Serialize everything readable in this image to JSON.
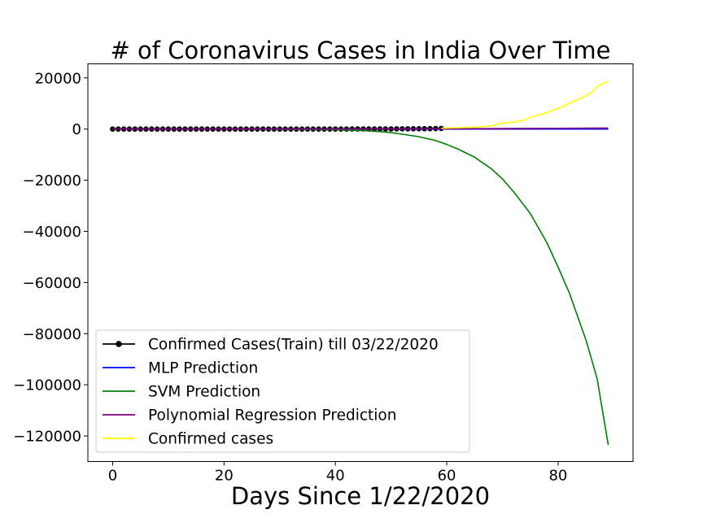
{
  "chart_data": {
    "type": "line",
    "title": "# of Coronavirus Cases in India Over Time",
    "xlabel": "Days Since 1/22/2020",
    "ylabel": "",
    "xlim": [
      -4.45,
      93.45
    ],
    "ylim": [
      -130000,
      25500
    ],
    "x_ticks": [
      0,
      20,
      40,
      60,
      80
    ],
    "x_tick_labels": [
      "0",
      "20",
      "40",
      "60",
      "80"
    ],
    "y_ticks": [
      20000,
      0,
      -20000,
      -40000,
      -60000,
      -80000,
      -100000,
      -120000
    ],
    "y_tick_labels": [
      "20000",
      "0",
      "−20000",
      "−40000",
      "−60000",
      "−80000",
      "−100000",
      "−120000"
    ],
    "grid": false,
    "legend_position": "lower-left",
    "series": [
      {
        "name": "Confirmed Cases(Train) till 03/22/2020",
        "color": "#000000",
        "marker": "circle",
        "x": [
          0,
          1,
          2,
          3,
          4,
          5,
          6,
          7,
          8,
          9,
          10,
          11,
          12,
          13,
          14,
          15,
          16,
          17,
          18,
          19,
          20,
          21,
          22,
          23,
          24,
          25,
          26,
          27,
          28,
          29,
          30,
          31,
          32,
          33,
          34,
          35,
          36,
          37,
          38,
          39,
          40,
          41,
          42,
          43,
          44,
          45,
          46,
          47,
          48,
          49,
          50,
          51,
          52,
          53,
          54,
          55,
          56,
          57,
          58,
          59
        ],
        "y": [
          0,
          0,
          0,
          0,
          0,
          0,
          0,
          0,
          1,
          1,
          1,
          2,
          3,
          3,
          3,
          3,
          3,
          3,
          3,
          3,
          3,
          3,
          3,
          3,
          3,
          3,
          3,
          3,
          3,
          3,
          3,
          3,
          3,
          3,
          3,
          3,
          3,
          3,
          3,
          3,
          3,
          5,
          5,
          28,
          30,
          31,
          34,
          39,
          43,
          56,
          62,
          73,
          82,
          102,
          113,
          119,
          142,
          156,
          194,
          244
        ]
      },
      {
        "name": "MLP Prediction",
        "color": "#0000ff",
        "x": [
          0,
          5,
          10,
          15,
          20,
          25,
          30,
          35,
          40,
          45,
          50,
          55,
          60,
          65,
          70,
          75,
          80,
          85,
          89
        ],
        "y": [
          0,
          0,
          0,
          0,
          0,
          0,
          0,
          0,
          0,
          0,
          0,
          0,
          0,
          0,
          0,
          0,
          0,
          0,
          0
        ]
      },
      {
        "name": "SVM Prediction",
        "color": "#008000",
        "x": [
          0,
          5,
          10,
          15,
          20,
          25,
          30,
          35,
          40,
          42,
          45,
          48,
          50,
          52,
          55,
          58,
          60,
          62,
          65,
          68,
          70,
          72,
          75,
          78,
          80,
          82,
          85,
          87,
          89
        ],
        "y": [
          0,
          0,
          0,
          0,
          -20,
          -40,
          -80,
          -150,
          -300,
          -400,
          -600,
          -1000,
          -1400,
          -2000,
          -3000,
          -4500,
          -6000,
          -7800,
          -11000,
          -15500,
          -19500,
          -24500,
          -33000,
          -44500,
          -54000,
          -64000,
          -82500,
          -97500,
          -123500
        ]
      },
      {
        "name": "Polynomial Regression Prediction",
        "color": "#800080",
        "x": [
          0,
          10,
          20,
          30,
          40,
          50,
          60,
          70,
          80,
          89
        ],
        "y": [
          0,
          0,
          0,
          0,
          0,
          50,
          100,
          200,
          300,
          400
        ]
      },
      {
        "name": "Confirmed cases",
        "color": "#ffff00",
        "x": [
          59,
          60,
          62,
          64,
          66,
          68,
          70,
          71,
          72,
          74,
          75,
          76,
          78,
          79,
          80,
          81,
          82,
          83,
          84,
          85,
          86,
          87,
          88,
          89
        ],
        "y": [
          330,
          400,
          500,
          650,
          850,
          1200,
          2300,
          2500,
          2700,
          3500,
          4500,
          5200,
          6400,
          7300,
          8000,
          9000,
          10000,
          11000,
          12000,
          13000,
          14200,
          16500,
          17800,
          18500
        ]
      }
    ]
  }
}
